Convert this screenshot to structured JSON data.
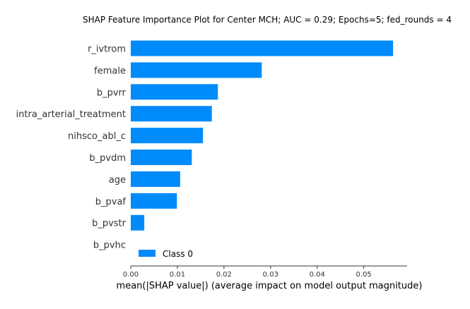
{
  "chart_data": {
    "type": "bar",
    "orientation": "horizontal",
    "title": "SHAP Feature Importance Plot for Center MCH; AUC = 0.29; Epochs=5; fed_rounds = 4",
    "xlabel": "mean(|SHAP value|) (average impact on model output magnitude)",
    "ylabel": "",
    "categories": [
      "r_ivtrom",
      "female",
      "b_pvrr",
      "intra_arterial_treatment",
      "nihsco_abl_c",
      "b_pvdm",
      "age",
      "b_pvaf",
      "b_pvstr",
      "b_pvhc"
    ],
    "series": [
      {
        "name": "Class 0",
        "color": "#008bfb",
        "values": [
          0.0563,
          0.0281,
          0.0187,
          0.0174,
          0.0155,
          0.0131,
          0.0106,
          0.0099,
          0.0029,
          0.0
        ]
      }
    ],
    "xlim": [
      0,
      0.0593
    ],
    "xticks": [
      0.0,
      0.01,
      0.02,
      0.03,
      0.04,
      0.05
    ],
    "xtick_labels": [
      "0.00",
      "0.01",
      "0.02",
      "0.03",
      "0.04",
      "0.05"
    ],
    "grid": false,
    "legend_position": "lower-left"
  }
}
